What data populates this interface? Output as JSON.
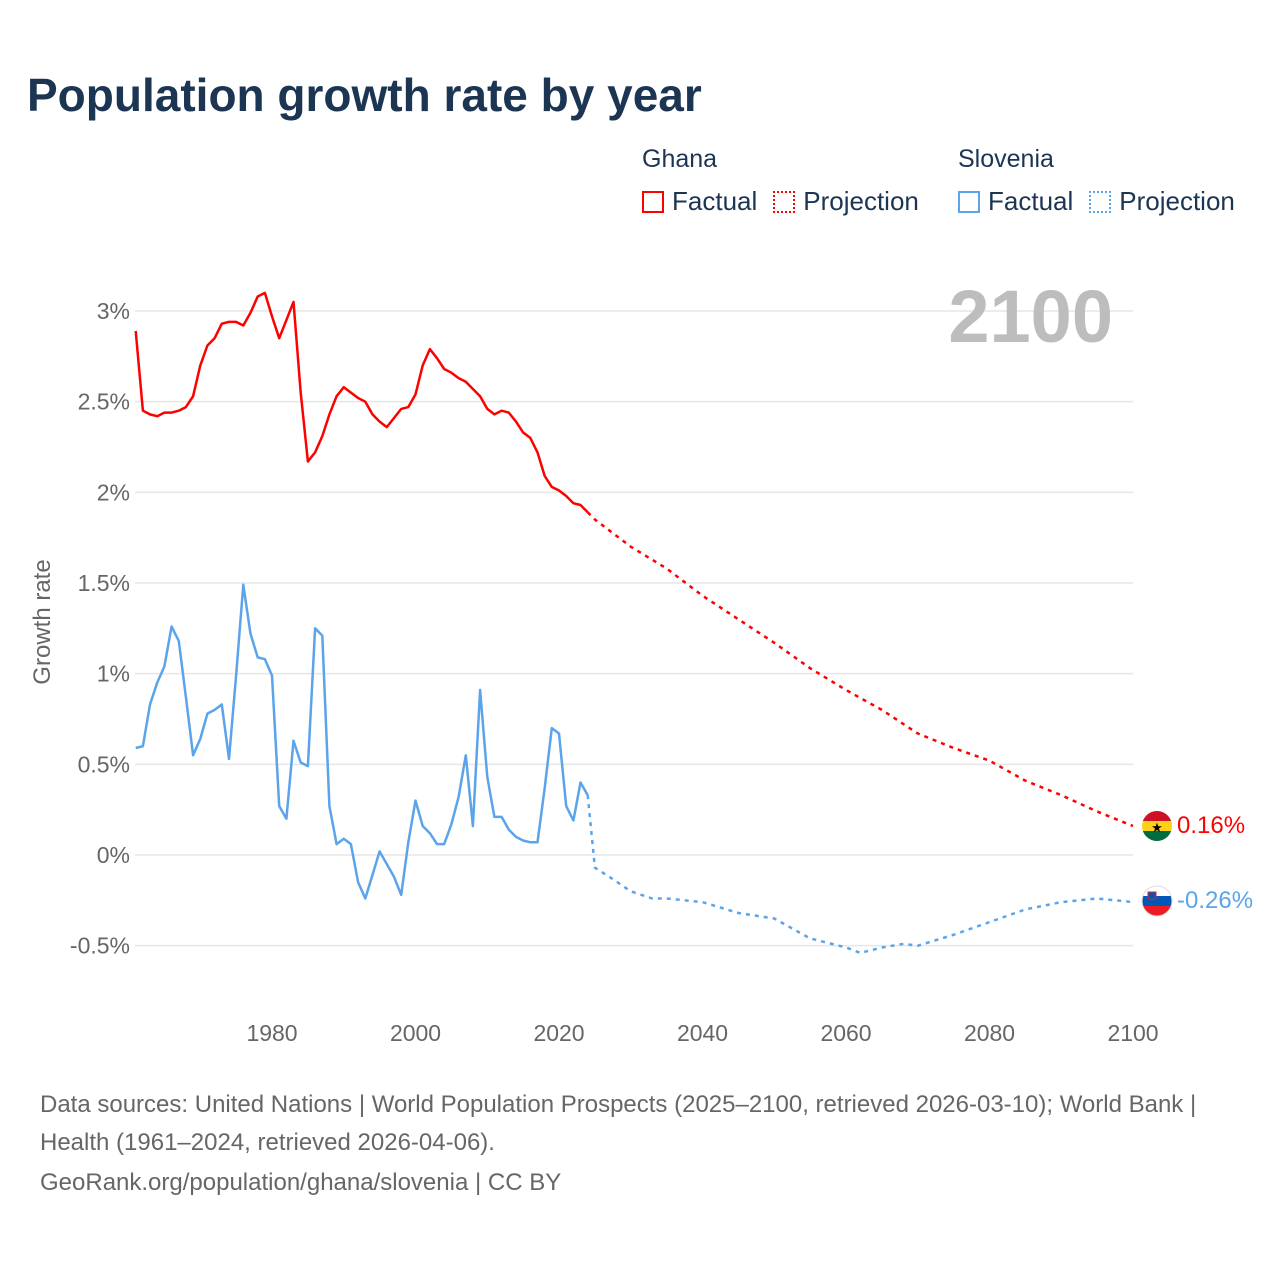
{
  "title": "Population growth rate by year",
  "legend": {
    "groups": [
      {
        "name": "Ghana",
        "color": "#ff0000",
        "factual_label": "Factual",
        "projection_label": "Projection"
      },
      {
        "name": "Slovenia",
        "color": "#5ba4ea",
        "factual_label": "Factual",
        "projection_label": "Projection"
      }
    ]
  },
  "year_display": "2100",
  "end_labels": {
    "ghana": "0.16%",
    "slovenia": "-0.26%"
  },
  "footer": {
    "sources": "Data sources: United Nations | World Population Prospects (2025–2100, retrieved 2026-03-10); World Bank | Health (1961–2024, retrieved 2026-04-06).",
    "link": "GeoRank.org/population/ghana/slovenia | CC BY"
  },
  "chart_data": {
    "type": "line",
    "title": "Population growth rate by year",
    "xlabel": "",
    "ylabel": "Growth rate",
    "xlim": [
      1961,
      2100
    ],
    "ylim": [
      -0.7,
      3.2
    ],
    "grid": true,
    "x_ticks": [
      1980,
      2000,
      2020,
      2040,
      2060,
      2080,
      2100
    ],
    "x_tick_labels": [
      "1980",
      "2000",
      "2020",
      "2040",
      "2060",
      "2080",
      "2100"
    ],
    "y_ticks": [
      3,
      2.5,
      2,
      1.5,
      1,
      0.5,
      0,
      -0.5
    ],
    "y_tick_labels": [
      "3%",
      "2.5%",
      "2%",
      "1.5%",
      "1%",
      "0.5%",
      "0%",
      "-0.5%"
    ],
    "series": [
      {
        "name": "Ghana Factual",
        "color": "#ff0000",
        "style": "solid",
        "start_year": 1961,
        "values": [
          2.89,
          2.45,
          2.43,
          2.42,
          2.44,
          2.44,
          2.45,
          2.47,
          2.53,
          2.7,
          2.81,
          2.85,
          2.93,
          2.94,
          2.94,
          2.92,
          2.99,
          3.08,
          3.1,
          2.97,
          2.85,
          2.95,
          3.05,
          2.55,
          2.17,
          2.22,
          2.31,
          2.43,
          2.53,
          2.58,
          2.55,
          2.52,
          2.5,
          2.43,
          2.39,
          2.36,
          2.41,
          2.46,
          2.47,
          2.54,
          2.7,
          2.79,
          2.74,
          2.68,
          2.66,
          2.63,
          2.61,
          2.57,
          2.53,
          2.46,
          2.43,
          2.45,
          2.44,
          2.39,
          2.33,
          2.3,
          2.22,
          2.09,
          2.03,
          2.01,
          1.98,
          1.94,
          1.93,
          1.89
        ]
      },
      {
        "name": "Ghana Projection",
        "color": "#ff0000",
        "style": "dotted",
        "x": [
          2024,
          2025,
          2030,
          2035,
          2040,
          2045,
          2050,
          2055,
          2060,
          2065,
          2070,
          2075,
          2080,
          2085,
          2090,
          2095,
          2100
        ],
        "values": [
          1.89,
          1.85,
          1.7,
          1.58,
          1.43,
          1.3,
          1.17,
          1.03,
          0.91,
          0.8,
          0.67,
          0.59,
          0.52,
          0.41,
          0.33,
          0.24,
          0.16
        ]
      },
      {
        "name": "Slovenia Factual",
        "color": "#5ba4ea",
        "style": "solid",
        "start_year": 1961,
        "values": [
          0.59,
          0.6,
          0.83,
          0.95,
          1.04,
          1.26,
          1.18,
          0.87,
          0.55,
          0.64,
          0.78,
          0.8,
          0.83,
          0.53,
          0.99,
          1.49,
          1.22,
          1.09,
          1.08,
          0.99,
          0.27,
          0.2,
          0.63,
          0.51,
          0.49,
          1.25,
          1.21,
          0.27,
          0.06,
          0.09,
          0.06,
          -0.15,
          -0.24,
          -0.11,
          0.02,
          -0.05,
          -0.12,
          -0.22,
          0.07,
          0.3,
          0.16,
          0.12,
          0.06,
          0.06,
          0.17,
          0.32,
          0.55,
          0.16,
          0.91,
          0.43,
          0.21,
          0.21,
          0.14,
          0.1,
          0.08,
          0.07,
          0.07,
          0.37,
          0.7,
          0.67,
          0.27,
          0.19,
          0.4,
          0.33
        ]
      },
      {
        "name": "Slovenia Projection",
        "color": "#5ba4ea",
        "style": "dotted",
        "x": [
          2024,
          2025,
          2027,
          2030,
          2033,
          2035,
          2040,
          2045,
          2050,
          2055,
          2060,
          2062,
          2065,
          2068,
          2070,
          2075,
          2080,
          2085,
          2090,
          2095,
          2100
        ],
        "values": [
          0.33,
          -0.07,
          -0.12,
          -0.2,
          -0.24,
          -0.24,
          -0.26,
          -0.32,
          -0.35,
          -0.46,
          -0.51,
          -0.54,
          -0.51,
          -0.49,
          -0.5,
          -0.44,
          -0.37,
          -0.3,
          -0.26,
          -0.24,
          -0.26
        ]
      }
    ]
  }
}
